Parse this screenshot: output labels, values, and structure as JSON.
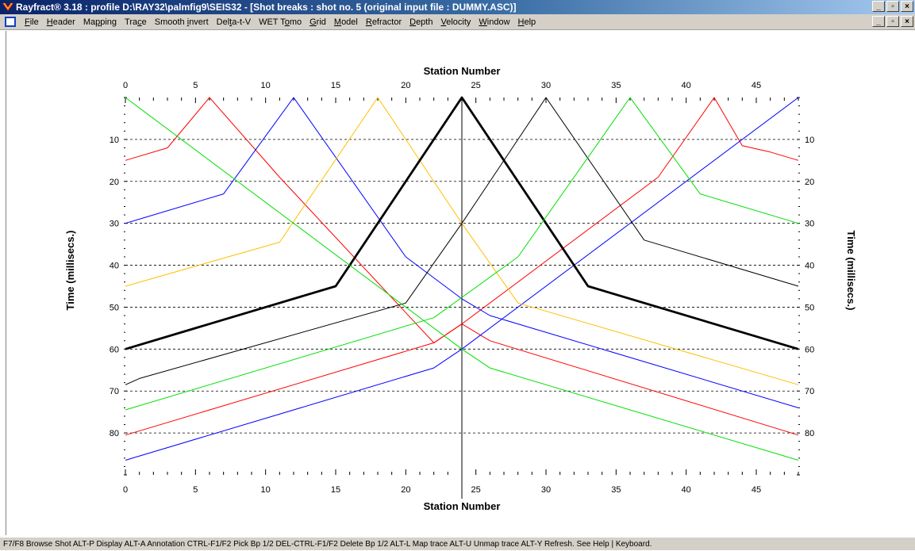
{
  "window": {
    "title": "Rayfract® 3.18 : profile D:\\RAY32\\palmfig9\\SEIS32 - [Shot breaks : shot no. 5 (original input file : DUMMY.ASC)]",
    "buttons": [
      "_",
      "▫",
      "×"
    ]
  },
  "menu": {
    "items": [
      {
        "label": "File",
        "accel": "F"
      },
      {
        "label": "Header",
        "accel": "H"
      },
      {
        "label": "Mapping",
        "accel": "p"
      },
      {
        "label": "Trace",
        "accel": "c"
      },
      {
        "label": "Smooth invert",
        "accel": "i"
      },
      {
        "label": "Delta-t-V",
        "accel": "t"
      },
      {
        "label": "WET Tomo",
        "accel": "o"
      },
      {
        "label": "Grid",
        "accel": "G"
      },
      {
        "label": "Model",
        "accel": "M"
      },
      {
        "label": "Refractor",
        "accel": "R"
      },
      {
        "label": "Depth",
        "accel": "D"
      },
      {
        "label": "Velocity",
        "accel": "V"
      },
      {
        "label": "Window",
        "accel": "W"
      },
      {
        "label": "Help",
        "accel": "H"
      }
    ]
  },
  "statusbar": {
    "text": "F7/F8 Browse Shot  ALT-P Display  ALT-A Annotation  CTRL-F1/F2 Pick Bp 1/2  DEL-CTRL-F1/F2 Delete Bp 1/2  ALT-L Map trace  ALT-U Unmap trace  ALT-Y Refresh.  See Help | Keyboard."
  },
  "colors": {
    "red": "#ff0000",
    "blue": "#0000ff",
    "orange": "#ffc000",
    "black": "#000000",
    "green": "#00e000"
  },
  "chart_data": {
    "type": "line",
    "xlabel_top": "Station Number",
    "xlabel_bottom": "Station Number",
    "ylabel_left": "Time (millisecs.)",
    "ylabel_right": "Time (millisecs.)",
    "xlim": [
      0,
      48
    ],
    "ylim": [
      0,
      90
    ],
    "y_inverted": true,
    "x_ticks": [
      0,
      5,
      10,
      15,
      20,
      25,
      30,
      35,
      40,
      45
    ],
    "y_ticks": [
      10,
      20,
      30,
      40,
      50,
      60,
      70,
      80
    ],
    "grid": "horizontal dashed",
    "current_shot_station": 24,
    "series": [
      {
        "color": "red",
        "bold": false,
        "points": [
          [
            0,
            15
          ],
          [
            3,
            12
          ],
          [
            6,
            0
          ],
          [
            11,
            19
          ],
          [
            22,
            58.5
          ],
          [
            24,
            54
          ],
          [
            26,
            58
          ],
          [
            48,
            80.5
          ]
        ]
      },
      {
        "color": "red",
        "bold": false,
        "points": [
          [
            0,
            80.5
          ],
          [
            22,
            58.5
          ],
          [
            24,
            54
          ],
          [
            26,
            49
          ],
          [
            38,
            19
          ],
          [
            42,
            0
          ],
          [
            44,
            11.5
          ],
          [
            46,
            13
          ],
          [
            48,
            15
          ]
        ]
      },
      {
        "color": "blue",
        "bold": false,
        "points": [
          [
            0,
            30
          ],
          [
            1,
            29
          ],
          [
            7,
            23
          ],
          [
            12,
            0
          ],
          [
            20,
            38
          ],
          [
            24,
            48
          ],
          [
            26,
            52
          ],
          [
            48,
            74
          ]
        ]
      },
      {
        "color": "blue",
        "bold": false,
        "points": [
          [
            0,
            86.5
          ],
          [
            22,
            64.5
          ],
          [
            24,
            60
          ],
          [
            48,
            0
          ]
        ]
      },
      {
        "color": "orange",
        "bold": false,
        "points": [
          [
            0,
            45
          ],
          [
            11,
            34.5
          ],
          [
            18,
            0
          ],
          [
            24,
            30
          ],
          [
            28,
            49
          ],
          [
            48,
            68.5
          ]
        ]
      },
      {
        "color": "black",
        "bold": false,
        "points": [
          [
            0,
            68.5
          ],
          [
            1,
            67
          ],
          [
            20,
            49
          ],
          [
            24,
            30
          ],
          [
            30,
            0
          ],
          [
            37,
            34
          ],
          [
            48,
            45
          ]
        ]
      },
      {
        "color": "black",
        "bold": true,
        "points": [
          [
            0,
            60
          ],
          [
            15,
            45
          ],
          [
            24,
            0
          ],
          [
            33,
            45
          ],
          [
            48,
            60
          ]
        ]
      },
      {
        "color": "green",
        "bold": false,
        "points": [
          [
            0,
            0
          ],
          [
            24,
            60
          ],
          [
            26,
            64.5
          ],
          [
            48,
            86.5
          ]
        ]
      },
      {
        "color": "green",
        "bold": false,
        "points": [
          [
            0,
            74.5
          ],
          [
            22,
            52.5
          ],
          [
            28,
            38
          ],
          [
            36,
            0
          ],
          [
            41,
            23
          ],
          [
            48,
            30
          ]
        ]
      }
    ]
  }
}
